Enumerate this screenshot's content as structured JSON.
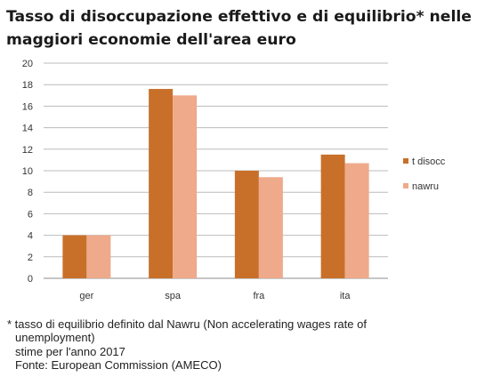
{
  "title_line1": "Tasso di disoccupazione effettivo e di equilibrio* nelle",
  "title_line2": "maggiori economie dell'area euro",
  "notes": {
    "line1": "* tasso di equilibrio definito dal Nawru (Non accelerating wages rate of",
    "line2": "unemployment)",
    "line3": "stime per l'anno 2017",
    "line4": "Fonte: European Commission (AMECO)"
  },
  "colors": {
    "series1": "#c8702a",
    "series2": "#eeaa8a",
    "grid": "#bcbcbc",
    "axis": "#8c8c8c"
  },
  "chart_data": {
    "type": "bar",
    "categories": [
      "ger",
      "spa",
      "fra",
      "ita"
    ],
    "series": [
      {
        "name": "t disocc",
        "values": [
          4.0,
          17.6,
          10.0,
          11.5
        ]
      },
      {
        "name": "nawru",
        "values": [
          4.0,
          17.0,
          9.4,
          10.7
        ]
      }
    ],
    "ylim": [
      0,
      20
    ],
    "yticks": [
      "0",
      "2",
      "4",
      "6",
      "8",
      "10",
      "12",
      "14",
      "16",
      "18",
      "20"
    ],
    "grid": true,
    "legend": "right"
  }
}
